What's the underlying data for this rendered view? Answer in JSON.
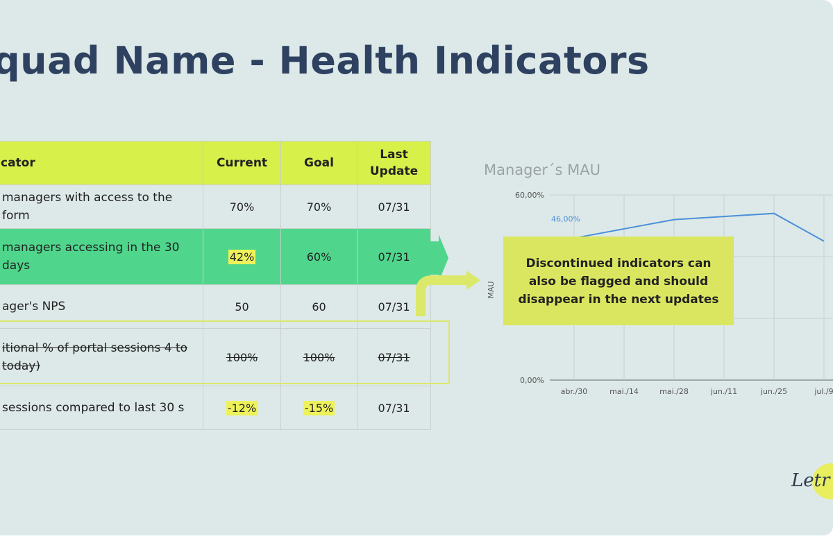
{
  "title": "quad Name - Health Indicators",
  "table": {
    "headers": {
      "indicator": "cator",
      "current": "Current",
      "goal": "Goal",
      "last_update": "Last Update"
    },
    "rows": [
      {
        "name": "managers with access to the form",
        "current": "70%",
        "goal": "70%",
        "last": "07/31"
      },
      {
        "name": "managers accessing in the 30 days",
        "current": "42%",
        "goal": "60%",
        "last": "07/31"
      },
      {
        "name": "ager's NPS",
        "current": "50",
        "goal": "60",
        "last": "07/31"
      },
      {
        "name": "itional % of portal sessions 4 to today)",
        "current": "100%",
        "goal": "100%",
        "last": "07/31"
      },
      {
        "name": "sessions compared to last 30 s",
        "current": "-12%",
        "goal": "-15%",
        "last": "07/31"
      }
    ]
  },
  "callout": "Discontinued indicators can also be flagged and should disappear in the next updates",
  "logo_text": "Letr",
  "colors": {
    "background": "#dde9e8",
    "title": "#2e4160",
    "header": "#d8f04a",
    "highlight_row": "#4fd68c",
    "callout": "#dbe660",
    "line": "#4a90d9"
  },
  "chart_data": {
    "type": "line",
    "title": "Manager´s MAU",
    "ylabel": "MAU",
    "xlabel": "",
    "ylim": [
      0,
      60
    ],
    "yticks": [
      "0,00%",
      "60,00%"
    ],
    "categories": [
      "abr./30",
      "mai./14",
      "mai./28",
      "jun./11",
      "jun./25",
      "jul./9"
    ],
    "series": [
      {
        "name": "MAU",
        "values": [
          46,
          49,
          52,
          53,
          54,
          45
        ]
      }
    ],
    "annotations": [
      {
        "label": "46,00%",
        "category": "abr./30"
      }
    ]
  }
}
